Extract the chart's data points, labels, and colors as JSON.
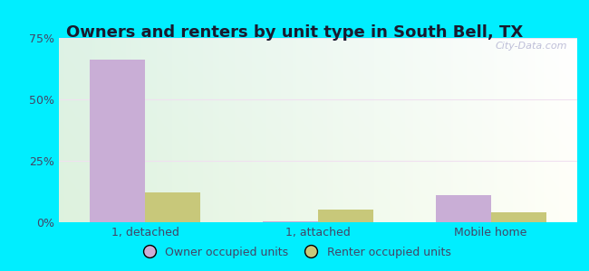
{
  "title": "Owners and renters by unit type in South Bell, TX",
  "categories": [
    "1, detached",
    "1, attached",
    "Mobile home"
  ],
  "owner_values": [
    66.0,
    0.5,
    11.0
  ],
  "renter_values": [
    12.0,
    5.0,
    4.0
  ],
  "owner_color": "#c9aed6",
  "renter_color": "#c8c87a",
  "ylim": [
    0,
    75
  ],
  "yticks": [
    0,
    25,
    50,
    75
  ],
  "ytick_labels": [
    "0%",
    "25%",
    "50%",
    "75%"
  ],
  "bar_width": 0.32,
  "legend_owner": "Owner occupied units",
  "legend_renter": "Renter occupied units",
  "watermark": "City-Data.com",
  "title_fontsize": 13,
  "tick_fontsize": 9,
  "legend_fontsize": 9,
  "title_color": "#1a1a2e",
  "tick_color": "#444466",
  "fig_bg": "#00eeff",
  "grid_color": "#e8e8e8"
}
